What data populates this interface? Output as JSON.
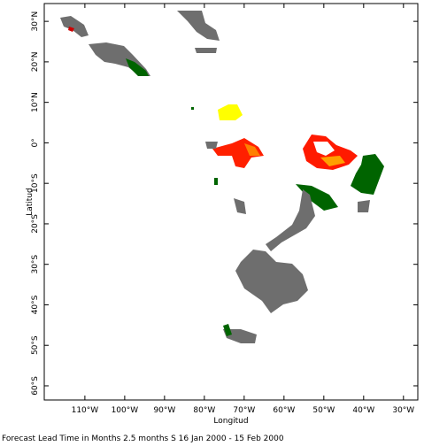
{
  "chart_data": {
    "type": "map",
    "xlabel": "Longitud",
    "ylabel": "Latitud",
    "caption": "Forecast Lead Time in Months 2.5 months S 16 Jan 2000 - 15 Feb 2000",
    "xlim": [
      -120.2,
      -26.4
    ],
    "ylim": [
      -63.5,
      34.4
    ],
    "xticks": [
      {
        "value": -110,
        "label": "110°W"
      },
      {
        "value": -100,
        "label": "100°W"
      },
      {
        "value": -90,
        "label": "90°W"
      },
      {
        "value": -80,
        "label": "80°W"
      },
      {
        "value": -70,
        "label": "70°W"
      },
      {
        "value": -60,
        "label": "60°W"
      },
      {
        "value": -50,
        "label": "50°W"
      },
      {
        "value": -40,
        "label": "40°W"
      },
      {
        "value": -30,
        "label": "30°W"
      }
    ],
    "yticks": [
      {
        "value": 30,
        "label": "30°N"
      },
      {
        "value": 20,
        "label": "20°N"
      },
      {
        "value": 10,
        "label": "10°N"
      },
      {
        "value": 0,
        "label": "0°"
      },
      {
        "value": -10,
        "label": "10°S"
      },
      {
        "value": -20,
        "label": "20°S"
      },
      {
        "value": -30,
        "label": "30°S"
      },
      {
        "value": -40,
        "label": "40°S"
      },
      {
        "value": -50,
        "label": "50°S"
      },
      {
        "value": -60,
        "label": "60°S"
      }
    ]
  }
}
